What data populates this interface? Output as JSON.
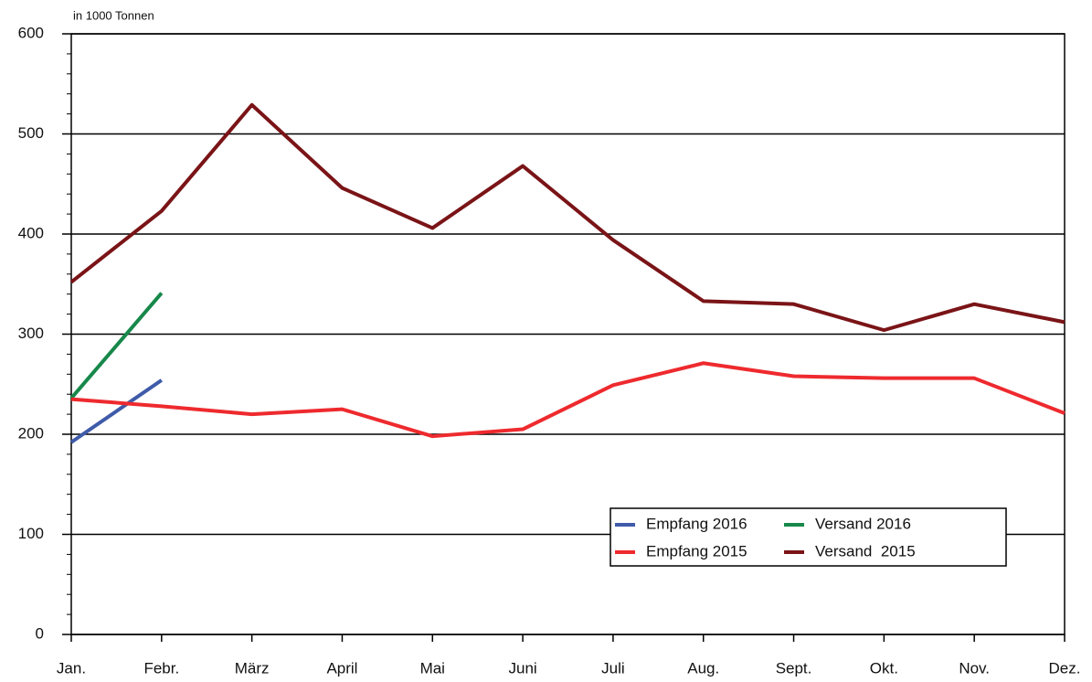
{
  "chart_data": {
    "type": "line",
    "unit_label": "in 1000 Tonnen",
    "categories": [
      "Jan.",
      "Febr.",
      "März",
      "April",
      "Mai",
      "Juni",
      "Juli",
      "Aug.",
      "Sept.",
      "Okt.",
      "Nov.",
      "Dez."
    ],
    "series": [
      {
        "name": "Empfang 2016",
        "color": "#3f5ba9",
        "values": [
          192,
          254,
          null,
          null,
          null,
          null,
          null,
          null,
          null,
          null,
          null,
          null
        ]
      },
      {
        "name": "Versand 2016",
        "color": "#17884a",
        "values": [
          236,
          341,
          null,
          null,
          null,
          null,
          null,
          null,
          null,
          null,
          null,
          null
        ]
      },
      {
        "name": "Empfang 2015",
        "color": "#ee2a2e",
        "values": [
          235,
          228,
          220,
          225,
          198,
          205,
          249,
          271,
          258,
          256,
          256,
          221
        ]
      },
      {
        "name": "Versand  2015",
        "color": "#7a1417",
        "values": [
          352,
          423,
          529,
          446,
          406,
          468,
          394,
          333,
          330,
          304,
          330,
          312
        ]
      }
    ],
    "ylim": [
      0,
      600
    ],
    "yticks": [
      0,
      100,
      200,
      300,
      400,
      500,
      600
    ],
    "grid": true
  }
}
